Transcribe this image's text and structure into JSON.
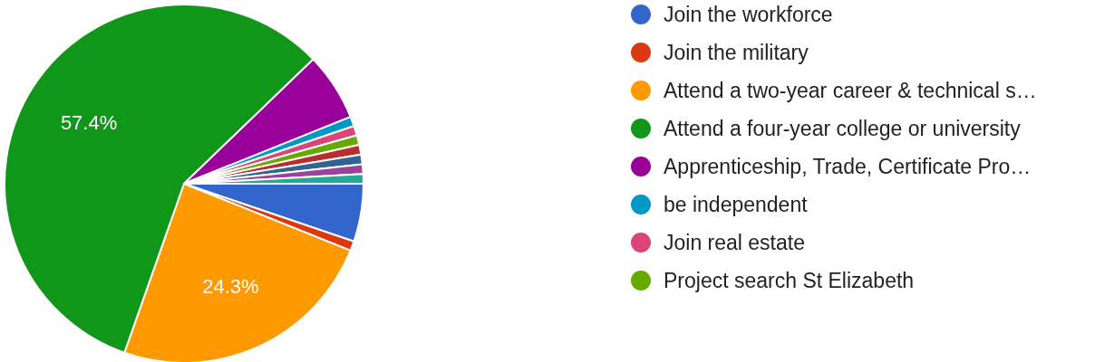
{
  "chart_data": {
    "type": "pie",
    "categories": [
      "Join the workforce",
      "Join the military",
      "Attend a two-year career & technical s…",
      "Attend a four-year college or university",
      "Apprenticeship, Trade, Certificate Pro…",
      "be independent",
      "Join real estate",
      "Project search St Elizabeth",
      null,
      null,
      null,
      null
    ],
    "values": [
      5.22,
      0.87,
      24.3,
      57.4,
      6.12,
      0.87,
      0.87,
      0.87,
      0.87,
      0.87,
      0.87,
      0.87
    ],
    "colors": [
      "#3366cc",
      "#dc3912",
      "#ff9900",
      "#109618",
      "#990099",
      "#0099c6",
      "#dd4477",
      "#66aa00",
      "#b82e2e",
      "#316395",
      "#994499",
      "#22aa99"
    ],
    "value_labels": [
      null,
      null,
      "24.3%",
      "57.4%",
      null,
      null,
      null,
      null,
      null,
      null,
      null,
      null
    ],
    "legend": "right"
  }
}
